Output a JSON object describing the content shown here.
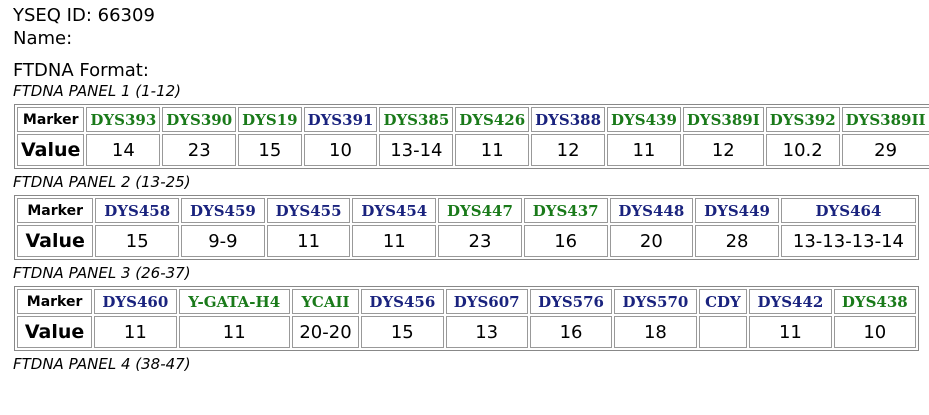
{
  "header": {
    "yseq_id": "YSEQ ID: 66309",
    "name": "Name:",
    "format": "FTDNA Format:"
  },
  "panels": [
    {
      "title": "FTDNA PANEL 1 (1-12)",
      "marker_label": "Marker",
      "value_label": "Value",
      "markers": [
        {
          "name": "DYS393",
          "color": "#1a7a1a",
          "value": 14
        },
        {
          "name": "DYS390",
          "color": "#1a7a1a",
          "value": 23
        },
        {
          "name": "DYS19",
          "color": "#1a7a1a",
          "value": 15
        },
        {
          "name": "DYS391",
          "color": "#1a237e",
          "value": 10
        },
        {
          "name": "DYS385",
          "color": "#1a7a1a",
          "value": "13-14"
        },
        {
          "name": "DYS426",
          "color": "#1a7a1a",
          "value": 11
        },
        {
          "name": "DYS388",
          "color": "#1a237e",
          "value": 12
        },
        {
          "name": "DYS439",
          "color": "#1a7a1a",
          "value": 11
        },
        {
          "name": "DYS389I",
          "color": "#1a7a1a",
          "value": 12
        },
        {
          "name": "DYS392",
          "color": "#1a7a1a",
          "value": 10.2
        },
        {
          "name": "DYS389II",
          "color": "#1a7a1a",
          "value": 29
        }
      ]
    },
    {
      "title": "FTDNA PANEL 2 (13-25)",
      "marker_label": "Marker",
      "value_label": "Value",
      "markers": [
        {
          "name": "DYS458",
          "color": "#1a237e",
          "value": 15
        },
        {
          "name": "DYS459",
          "color": "#1a237e",
          "value": "9-9"
        },
        {
          "name": "DYS455",
          "color": "#1a237e",
          "value": 11
        },
        {
          "name": "DYS454",
          "color": "#1a237e",
          "value": 11
        },
        {
          "name": "DYS447",
          "color": "#1a7a1a",
          "value": 23
        },
        {
          "name": "DYS437",
          "color": "#1a7a1a",
          "value": 16
        },
        {
          "name": "DYS448",
          "color": "#1a237e",
          "value": 20
        },
        {
          "name": "DYS449",
          "color": "#1a237e",
          "value": 28
        },
        {
          "name": "DYS464",
          "color": "#1a237e",
          "value": "13-13-13-14"
        }
      ]
    },
    {
      "title": "FTDNA PANEL 3 (26-37)",
      "marker_label": "Marker",
      "value_label": "Value",
      "markers": [
        {
          "name": "DYS460",
          "color": "#1a237e",
          "value": 11
        },
        {
          "name": "Y-GATA-H4",
          "color": "#1a7a1a",
          "value": 11
        },
        {
          "name": "YCAII",
          "color": "#1a7a1a",
          "value": "20-20"
        },
        {
          "name": "DYS456",
          "color": "#1a237e",
          "value": 15
        },
        {
          "name": "DYS607",
          "color": "#1a237e",
          "value": 13
        },
        {
          "name": "DYS576",
          "color": "#1a237e",
          "value": 16
        },
        {
          "name": "DYS570",
          "color": "#1a237e",
          "value": 18
        },
        {
          "name": "CDY",
          "color": "#1a237e",
          "value": null
        },
        {
          "name": "DYS442",
          "color": "#1a237e",
          "value": 11
        },
        {
          "name": "DYS438",
          "color": "#1a7a1a",
          "value": 10
        }
      ]
    },
    {
      "title": "FTDNA PANEL 4 (38-47)",
      "marker_label": "Marker",
      "value_label": "Value",
      "markers": []
    }
  ]
}
